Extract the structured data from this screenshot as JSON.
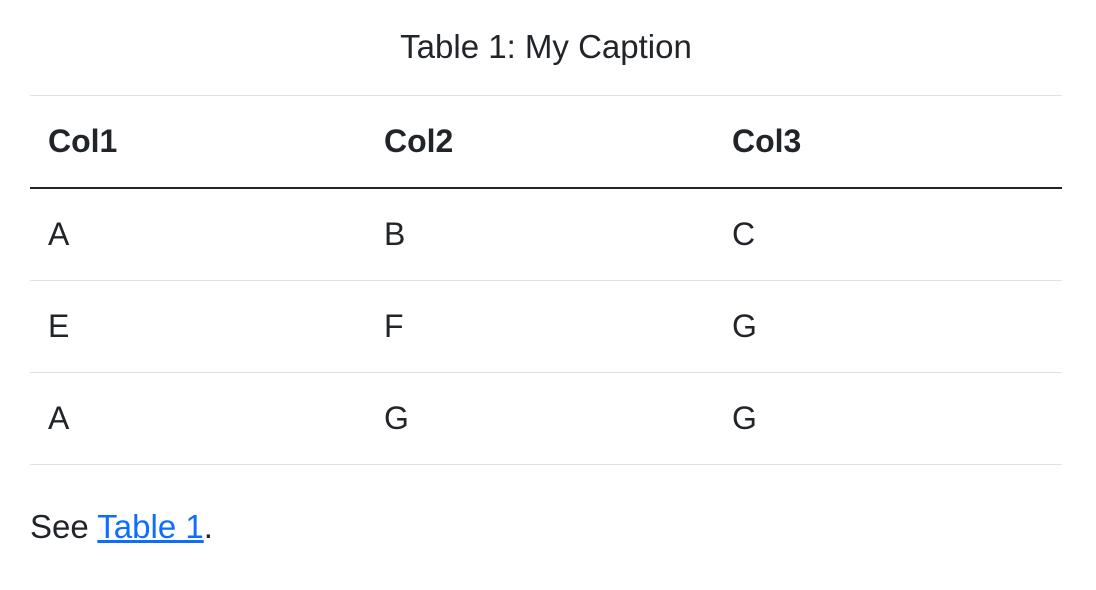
{
  "caption": "Table 1: My Caption",
  "columns": [
    "Col1",
    "Col2",
    "Col3"
  ],
  "rows": [
    [
      "A",
      "B",
      "C"
    ],
    [
      "E",
      "F",
      "G"
    ],
    [
      "A",
      "G",
      "G"
    ]
  ],
  "reference": {
    "prefix": "See ",
    "link": "Table 1",
    "suffix": "."
  }
}
